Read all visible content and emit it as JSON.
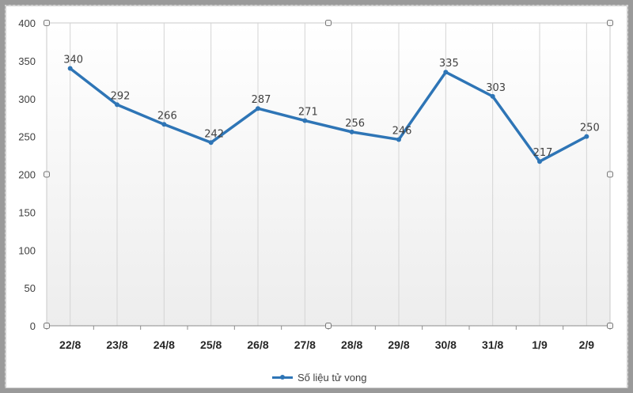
{
  "chart_data": {
    "type": "line",
    "categories": [
      "22/8",
      "23/8",
      "24/8",
      "25/8",
      "26/8",
      "27/8",
      "28/8",
      "29/8",
      "30/8",
      "31/8",
      "1/9",
      "2/9"
    ],
    "series": [
      {
        "name": "Số liệu tử vong",
        "values": [
          340,
          292,
          266,
          242,
          287,
          271,
          256,
          246,
          335,
          303,
          217,
          250
        ],
        "color": "#2e75b6"
      }
    ],
    "y_ticks": [
      "0",
      "50",
      "100",
      "150",
      "200",
      "250",
      "300",
      "350",
      "400"
    ],
    "ylim": [
      0,
      400
    ],
    "data_labels": true,
    "vertical_grid": true,
    "legend_position": "bottom"
  }
}
